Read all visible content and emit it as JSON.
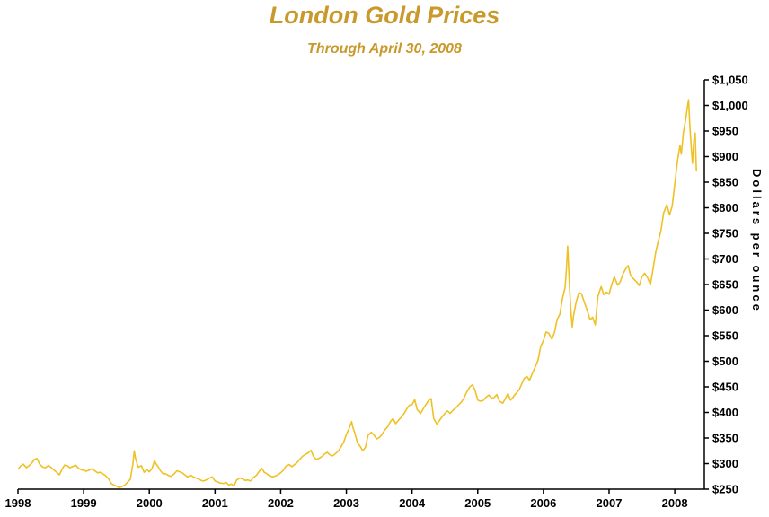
{
  "colors": {
    "title_text": "#C9992B",
    "line": "#EFC125",
    "axis": "#000000",
    "tick_text": "#000000",
    "background": "#FFFFFF"
  },
  "chart_data": {
    "type": "line",
    "title": "London Gold Prices",
    "subtitle": "Through April 30, 2008",
    "xlabel": "",
    "ylabel": "Dollars per ounce",
    "xlim": [
      1998,
      2008.45
    ],
    "ylim": [
      250,
      1050
    ],
    "grid": false,
    "legend": "none",
    "x_ticks": [
      1998,
      1999,
      2000,
      2001,
      2002,
      2003,
      2004,
      2005,
      2006,
      2007,
      2008
    ],
    "x_tick_labels": [
      "1998",
      "1999",
      "2000",
      "2001",
      "2002",
      "2003",
      "2004",
      "2005",
      "2006",
      "2007",
      "2008"
    ],
    "y_ticks": [
      250,
      300,
      350,
      400,
      450,
      500,
      550,
      600,
      650,
      700,
      750,
      800,
      850,
      900,
      950,
      1000,
      1050
    ],
    "y_tick_labels": [
      "$250",
      "$300",
      "$350",
      "$400",
      "$450",
      "$500",
      "$550",
      "$600",
      "$650",
      "$700",
      "$750",
      "$800",
      "$850",
      "$900",
      "$950",
      "$1,000",
      "$1,050"
    ],
    "points": [
      [
        1998.0,
        289
      ],
      [
        1998.04,
        295
      ],
      [
        1998.08,
        299
      ],
      [
        1998.13,
        292
      ],
      [
        1998.17,
        296
      ],
      [
        1998.21,
        301
      ],
      [
        1998.25,
        308
      ],
      [
        1998.29,
        310
      ],
      [
        1998.33,
        299
      ],
      [
        1998.38,
        293
      ],
      [
        1998.42,
        292
      ],
      [
        1998.46,
        296
      ],
      [
        1998.5,
        293
      ],
      [
        1998.54,
        288
      ],
      [
        1998.58,
        284
      ],
      [
        1998.63,
        278
      ],
      [
        1998.67,
        289
      ],
      [
        1998.71,
        297
      ],
      [
        1998.75,
        296
      ],
      [
        1998.79,
        292
      ],
      [
        1998.83,
        294
      ],
      [
        1998.88,
        297
      ],
      [
        1998.92,
        291
      ],
      [
        1998.96,
        288
      ],
      [
        1999.0,
        287
      ],
      [
        1999.04,
        285
      ],
      [
        1999.08,
        287
      ],
      [
        1999.13,
        290
      ],
      [
        1999.17,
        286
      ],
      [
        1999.21,
        282
      ],
      [
        1999.25,
        283
      ],
      [
        1999.29,
        280
      ],
      [
        1999.33,
        277
      ],
      [
        1999.38,
        270
      ],
      [
        1999.42,
        261
      ],
      [
        1999.46,
        258
      ],
      [
        1999.5,
        256
      ],
      [
        1999.54,
        253
      ],
      [
        1999.58,
        255
      ],
      [
        1999.63,
        258
      ],
      [
        1999.67,
        264
      ],
      [
        1999.71,
        269
      ],
      [
        1999.75,
        299
      ],
      [
        1999.77,
        325
      ],
      [
        1999.79,
        310
      ],
      [
        1999.83,
        293
      ],
      [
        1999.88,
        296
      ],
      [
        1999.92,
        283
      ],
      [
        1999.96,
        288
      ],
      [
        2000.0,
        284
      ],
      [
        2000.04,
        290
      ],
      [
        2000.08,
        306
      ],
      [
        2000.1,
        300
      ],
      [
        2000.13,
        295
      ],
      [
        2000.17,
        286
      ],
      [
        2000.21,
        280
      ],
      [
        2000.25,
        280
      ],
      [
        2000.29,
        277
      ],
      [
        2000.33,
        275
      ],
      [
        2000.38,
        280
      ],
      [
        2000.42,
        286
      ],
      [
        2000.46,
        284
      ],
      [
        2000.5,
        282
      ],
      [
        2000.54,
        278
      ],
      [
        2000.58,
        274
      ],
      [
        2000.63,
        277
      ],
      [
        2000.67,
        274
      ],
      [
        2000.71,
        272
      ],
      [
        2000.75,
        270
      ],
      [
        2000.79,
        267
      ],
      [
        2000.83,
        266
      ],
      [
        2000.88,
        269
      ],
      [
        2000.92,
        272
      ],
      [
        2000.96,
        274
      ],
      [
        2001.0,
        266
      ],
      [
        2001.04,
        264
      ],
      [
        2001.08,
        262
      ],
      [
        2001.13,
        261
      ],
      [
        2001.17,
        263
      ],
      [
        2001.21,
        258
      ],
      [
        2001.25,
        260
      ],
      [
        2001.29,
        256
      ],
      [
        2001.33,
        268
      ],
      [
        2001.38,
        272
      ],
      [
        2001.42,
        270
      ],
      [
        2001.46,
        267
      ],
      [
        2001.5,
        268
      ],
      [
        2001.54,
        266
      ],
      [
        2001.58,
        272
      ],
      [
        2001.63,
        277
      ],
      [
        2001.67,
        284
      ],
      [
        2001.71,
        291
      ],
      [
        2001.75,
        283
      ],
      [
        2001.79,
        280
      ],
      [
        2001.83,
        276
      ],
      [
        2001.88,
        274
      ],
      [
        2001.92,
        276
      ],
      [
        2001.96,
        278
      ],
      [
        2002.0,
        282
      ],
      [
        2002.04,
        287
      ],
      [
        2002.08,
        295
      ],
      [
        2002.13,
        298
      ],
      [
        2002.17,
        294
      ],
      [
        2002.21,
        298
      ],
      [
        2002.25,
        302
      ],
      [
        2002.29,
        308
      ],
      [
        2002.33,
        314
      ],
      [
        2002.38,
        318
      ],
      [
        2002.42,
        321
      ],
      [
        2002.46,
        326
      ],
      [
        2002.5,
        314
      ],
      [
        2002.54,
        308
      ],
      [
        2002.58,
        310
      ],
      [
        2002.63,
        314
      ],
      [
        2002.67,
        319
      ],
      [
        2002.71,
        322
      ],
      [
        2002.75,
        317
      ],
      [
        2002.79,
        315
      ],
      [
        2002.83,
        319
      ],
      [
        2002.88,
        325
      ],
      [
        2002.92,
        333
      ],
      [
        2002.96,
        342
      ],
      [
        2003.0,
        357
      ],
      [
        2003.04,
        368
      ],
      [
        2003.08,
        382
      ],
      [
        2003.1,
        370
      ],
      [
        2003.13,
        359
      ],
      [
        2003.17,
        340
      ],
      [
        2003.21,
        334
      ],
      [
        2003.25,
        325
      ],
      [
        2003.29,
        332
      ],
      [
        2003.33,
        355
      ],
      [
        2003.38,
        361
      ],
      [
        2003.42,
        356
      ],
      [
        2003.46,
        348
      ],
      [
        2003.5,
        351
      ],
      [
        2003.54,
        356
      ],
      [
        2003.58,
        365
      ],
      [
        2003.63,
        372
      ],
      [
        2003.67,
        382
      ],
      [
        2003.71,
        388
      ],
      [
        2003.75,
        378
      ],
      [
        2003.79,
        384
      ],
      [
        2003.83,
        390
      ],
      [
        2003.88,
        398
      ],
      [
        2003.92,
        407
      ],
      [
        2003.96,
        414
      ],
      [
        2004.0,
        415
      ],
      [
        2004.04,
        425
      ],
      [
        2004.08,
        405
      ],
      [
        2004.13,
        398
      ],
      [
        2004.17,
        407
      ],
      [
        2004.21,
        415
      ],
      [
        2004.25,
        423
      ],
      [
        2004.29,
        427
      ],
      [
        2004.33,
        388
      ],
      [
        2004.38,
        377
      ],
      [
        2004.42,
        385
      ],
      [
        2004.46,
        392
      ],
      [
        2004.5,
        398
      ],
      [
        2004.54,
        403
      ],
      [
        2004.58,
        398
      ],
      [
        2004.63,
        405
      ],
      [
        2004.67,
        409
      ],
      [
        2004.71,
        415
      ],
      [
        2004.75,
        420
      ],
      [
        2004.79,
        428
      ],
      [
        2004.83,
        439
      ],
      [
        2004.88,
        450
      ],
      [
        2004.92,
        454
      ],
      [
        2004.96,
        443
      ],
      [
        2005.0,
        424
      ],
      [
        2005.04,
        422
      ],
      [
        2005.08,
        423
      ],
      [
        2005.13,
        430
      ],
      [
        2005.17,
        434
      ],
      [
        2005.21,
        428
      ],
      [
        2005.25,
        429
      ],
      [
        2005.29,
        435
      ],
      [
        2005.33,
        422
      ],
      [
        2005.38,
        418
      ],
      [
        2005.42,
        427
      ],
      [
        2005.46,
        437
      ],
      [
        2005.5,
        424
      ],
      [
        2005.54,
        430
      ],
      [
        2005.58,
        437
      ],
      [
        2005.63,
        444
      ],
      [
        2005.67,
        456
      ],
      [
        2005.71,
        467
      ],
      [
        2005.75,
        470
      ],
      [
        2005.79,
        463
      ],
      [
        2005.83,
        476
      ],
      [
        2005.88,
        490
      ],
      [
        2005.92,
        503
      ],
      [
        2005.96,
        530
      ],
      [
        2006.0,
        540
      ],
      [
        2006.04,
        557
      ],
      [
        2006.08,
        555
      ],
      [
        2006.13,
        543
      ],
      [
        2006.17,
        557
      ],
      [
        2006.21,
        582
      ],
      [
        2006.25,
        592
      ],
      [
        2006.29,
        623
      ],
      [
        2006.33,
        644
      ],
      [
        2006.35,
        680
      ],
      [
        2006.37,
        725
      ],
      [
        2006.4,
        642
      ],
      [
        2006.42,
        596
      ],
      [
        2006.44,
        567
      ],
      [
        2006.46,
        590
      ],
      [
        2006.5,
        616
      ],
      [
        2006.54,
        634
      ],
      [
        2006.58,
        632
      ],
      [
        2006.63,
        613
      ],
      [
        2006.67,
        598
      ],
      [
        2006.71,
        581
      ],
      [
        2006.75,
        586
      ],
      [
        2006.79,
        571
      ],
      [
        2006.83,
        627
      ],
      [
        2006.88,
        646
      ],
      [
        2006.92,
        630
      ],
      [
        2006.96,
        635
      ],
      [
        2007.0,
        631
      ],
      [
        2007.04,
        650
      ],
      [
        2007.08,
        665
      ],
      [
        2007.13,
        649
      ],
      [
        2007.17,
        655
      ],
      [
        2007.21,
        670
      ],
      [
        2007.25,
        680
      ],
      [
        2007.29,
        687
      ],
      [
        2007.33,
        667
      ],
      [
        2007.38,
        660
      ],
      [
        2007.42,
        655
      ],
      [
        2007.46,
        648
      ],
      [
        2007.5,
        665
      ],
      [
        2007.54,
        672
      ],
      [
        2007.58,
        665
      ],
      [
        2007.63,
        650
      ],
      [
        2007.67,
        681
      ],
      [
        2007.71,
        713
      ],
      [
        2007.75,
        735
      ],
      [
        2007.79,
        755
      ],
      [
        2007.83,
        790
      ],
      [
        2007.88,
        806
      ],
      [
        2007.92,
        786
      ],
      [
        2007.96,
        803
      ],
      [
        2008.0,
        846
      ],
      [
        2008.04,
        890
      ],
      [
        2008.08,
        922
      ],
      [
        2008.1,
        905
      ],
      [
        2008.13,
        945
      ],
      [
        2008.17,
        975
      ],
      [
        2008.19,
        995
      ],
      [
        2008.21,
        1011
      ],
      [
        2008.23,
        960
      ],
      [
        2008.25,
        920
      ],
      [
        2008.27,
        887
      ],
      [
        2008.29,
        930
      ],
      [
        2008.31,
        946
      ],
      [
        2008.33,
        871
      ]
    ]
  }
}
